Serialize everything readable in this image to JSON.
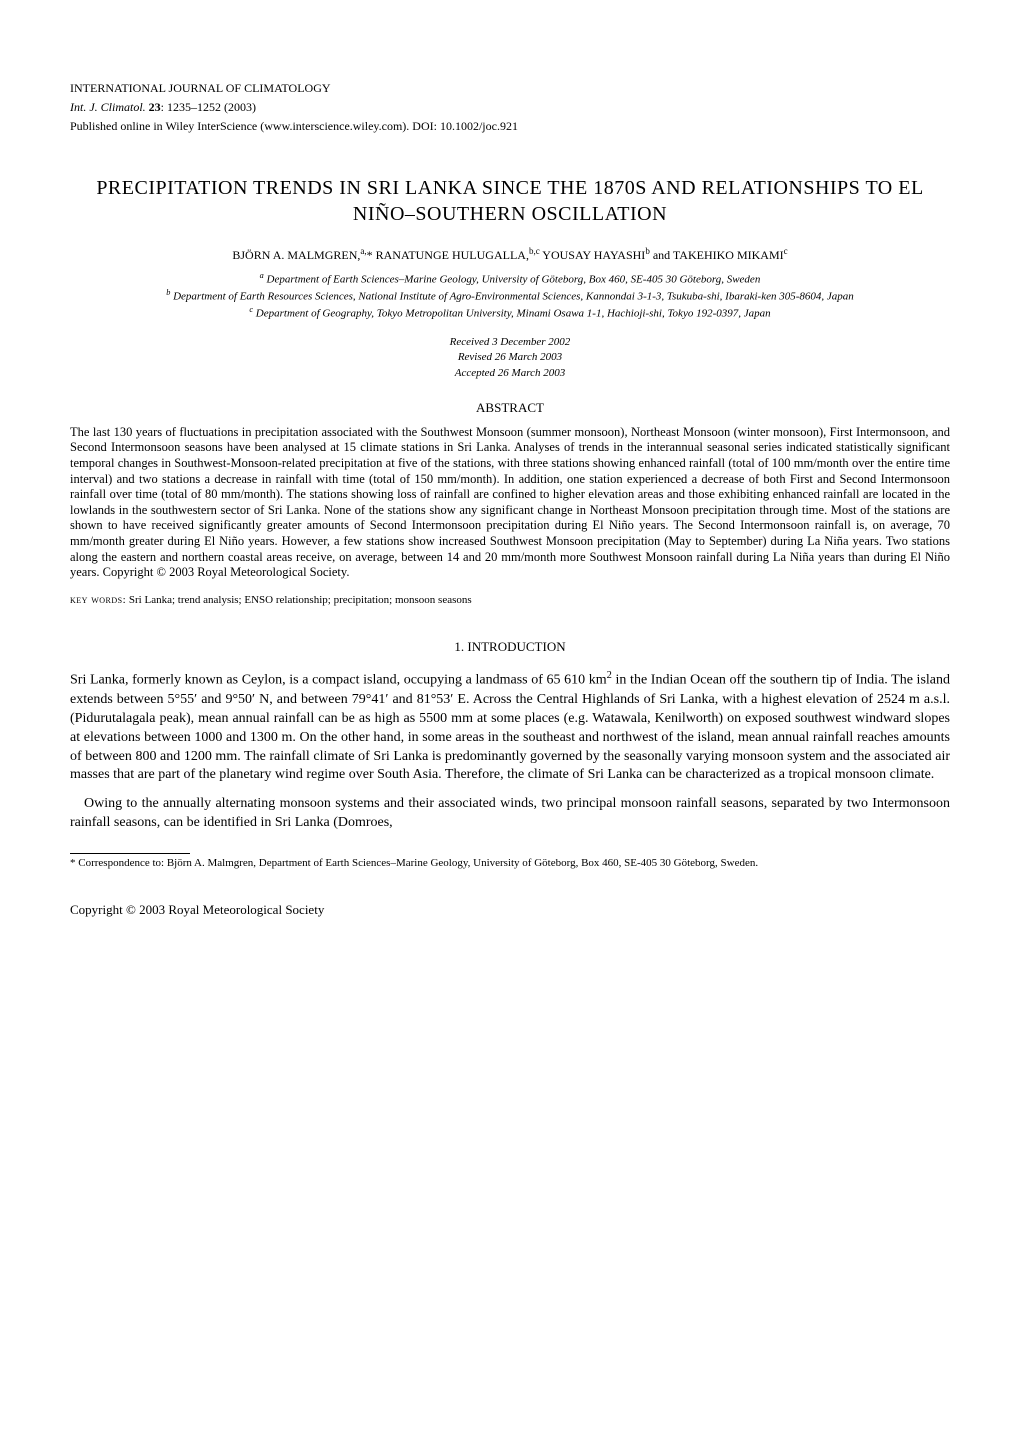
{
  "header": {
    "journal_name": "INTERNATIONAL JOURNAL OF CLIMATOLOGY",
    "citation_prefix": "Int. J. Climatol.",
    "volume": "23",
    "pages": "1235–1252",
    "year": "(2003)",
    "published": "Published online in Wiley InterScience (www.interscience.wiley.com). DOI: 10.1002/joc.921"
  },
  "title": "PRECIPITATION TRENDS IN SRI LANKA SINCE THE 1870S AND RELATIONSHIPS TO EL NIÑO–SOUTHERN OSCILLATION",
  "authors_html": "BJÖRN A. MALMGREN,<sup>a,</sup>* RANATUNGE HULUGALLA,<sup>b,c</sup> YOUSAY HAYASHI<sup>b</sup> and TAKEHIKO MIKAMI<sup>c</sup>",
  "affiliations": [
    "<sup>a</sup> Department of Earth Sciences–Marine Geology, University of Göteborg, Box 460, SE-405 30 Göteborg, Sweden",
    "<sup>b</sup> Department of Earth Resources Sciences, National Institute of Agro-Environmental Sciences, Kannondai 3-1-3, Tsukuba-shi, Ibaraki-ken 305-8604, Japan",
    "<sup>c</sup> Department of Geography, Tokyo Metropolitan University, Minami Osawa 1-1, Hachioji-shi, Tokyo 192-0397, Japan"
  ],
  "dates": {
    "received": "Received 3 December 2002",
    "revised": "Revised 26 March 2003",
    "accepted": "Accepted 26 March 2003"
  },
  "abstract": {
    "heading": "ABSTRACT",
    "text": "The last 130 years of fluctuations in precipitation associated with the Southwest Monsoon (summer monsoon), Northeast Monsoon (winter monsoon), First Intermonsoon, and Second Intermonsoon seasons have been analysed at 15 climate stations in Sri Lanka. Analyses of trends in the interannual seasonal series indicated statistically significant temporal changes in Southwest-Monsoon-related precipitation at five of the stations, with three stations showing enhanced rainfall (total of 100 mm/month over the entire time interval) and two stations a decrease in rainfall with time (total of 150 mm/month). In addition, one station experienced a decrease of both First and Second Intermonsoon rainfall over time (total of 80 mm/month). The stations showing loss of rainfall are confined to higher elevation areas and those exhibiting enhanced rainfall are located in the lowlands in the southwestern sector of Sri Lanka. None of the stations show any significant change in Northeast Monsoon precipitation through time. Most of the stations are shown to have received significantly greater amounts of Second Intermonsoon precipitation during El Niño years. The Second Intermonsoon rainfall is, on average, 70 mm/month greater during El Niño years. However, a few stations show increased Southwest Monsoon precipitation (May to September) during La Niña years. Two stations along the eastern and northern coastal areas receive, on average, between 14 and 20 mm/month more Southwest Monsoon rainfall during La Niña years than during El Niño years. Copyright © 2003 Royal Meteorological Society."
  },
  "keywords": {
    "label": "key words:",
    "terms": "Sri Lanka; trend analysis; ENSO relationship; precipitation; monsoon seasons"
  },
  "sections": {
    "intro_heading": "1. INTRODUCTION",
    "para1": "Sri Lanka, formerly known as Ceylon, is a compact island, occupying a landmass of 65 610 km<sup>2</sup> in the Indian Ocean off the southern tip of India. The island extends between 5°55′ and 9°50′ N, and between 79°41′ and 81°53′ E. Across the Central Highlands of Sri Lanka, with a highest elevation of 2524 m a.s.l. (Pidurutalagala peak), mean annual rainfall can be as high as 5500 mm at some places (e.g. Watawala, Kenilworth) on exposed southwest windward slopes at elevations between 1000 and 1300 m. On the other hand, in some areas in the southeast and northwest of the island, mean annual rainfall reaches amounts of between 800 and 1200 mm. The rainfall climate of Sri Lanka is predominantly governed by the seasonally varying monsoon system and the associated air masses that are part of the planetary wind regime over South Asia. Therefore, the climate of Sri Lanka can be characterized as a tropical monsoon climate.",
    "para2": "Owing to the annually alternating monsoon systems and their associated winds, two principal monsoon rainfall seasons, separated by two Intermonsoon rainfall seasons, can be identified in Sri Lanka (Domroes,"
  },
  "footnote": "* Correspondence to: Björn A. Malmgren, Department of Earth Sciences–Marine Geology, University of Göteborg, Box 460, SE-405 30 Göteborg, Sweden.",
  "copyright": "Copyright © 2003 Royal Meteorological Society"
}
